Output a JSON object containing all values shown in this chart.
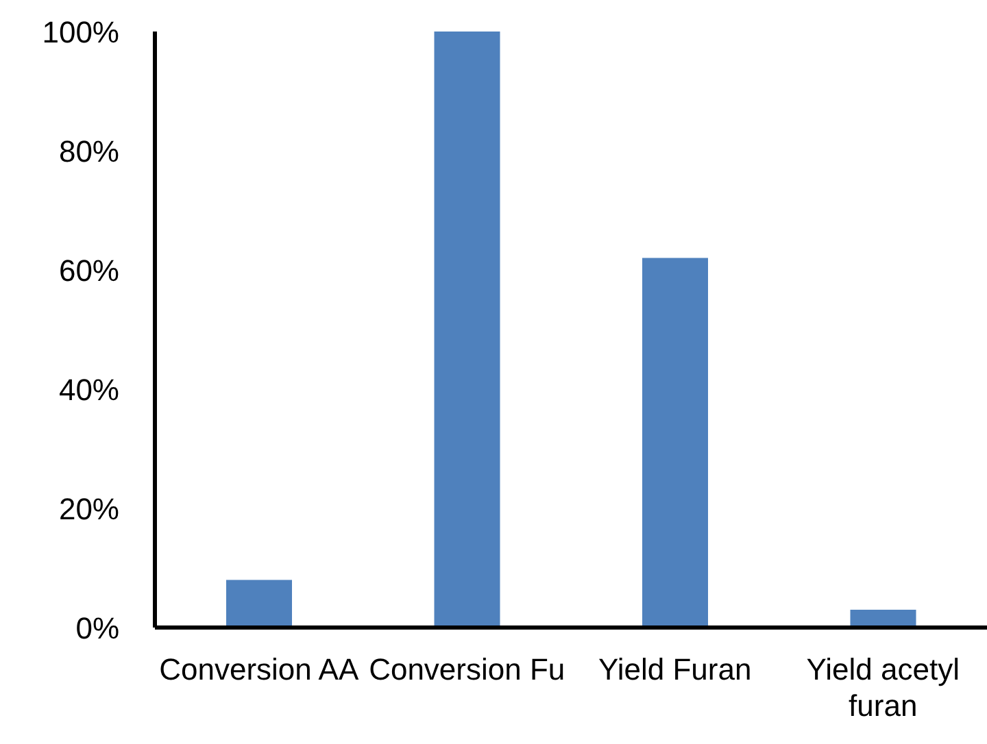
{
  "chart_data": {
    "type": "bar",
    "categories": [
      "Conversion AA",
      "Conversion Fu",
      "Yield Furan",
      "Yield acetyl furan"
    ],
    "values": [
      8,
      100,
      62,
      3
    ],
    "color": "#4f81bd",
    "ylim": [
      0,
      100
    ],
    "yticks": [
      {
        "value": 0,
        "label": "0%"
      },
      {
        "value": 20,
        "label": "20%"
      },
      {
        "value": 40,
        "label": "40%"
      },
      {
        "value": 60,
        "label": "60%"
      },
      {
        "value": 80,
        "label": "80%"
      },
      {
        "value": 100,
        "label": "100%"
      }
    ],
    "grid": false,
    "legend": false
  }
}
